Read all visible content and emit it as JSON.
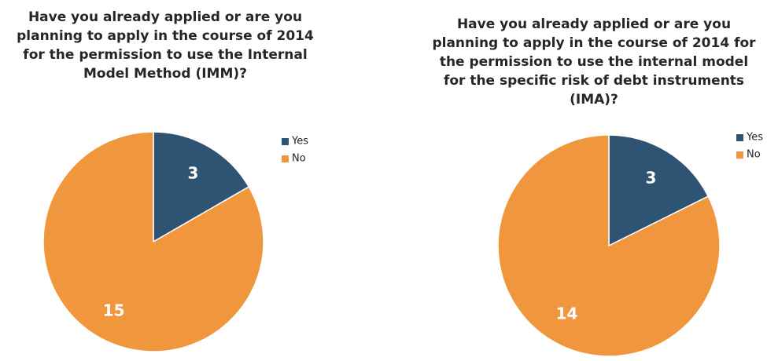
{
  "chart_data": [
    {
      "type": "pie",
      "title": "Have you already applied or are you\nplanning to apply in the course of 2014\nfor the permission to use the Internal\nModel Method (IMM)?",
      "categories": [
        "Yes",
        "No"
      ],
      "values": [
        3,
        15
      ],
      "colors": [
        "#2e5373",
        "#f0963c"
      ],
      "legend": "right",
      "data_labels": true
    },
    {
      "type": "pie",
      "title": "Have you already applied or are you\nplanning to apply in the course of 2014 for\nthe permission to use the internal model\nfor the specific risk of debt instruments\n(IMA)?",
      "categories": [
        "Yes",
        "No"
      ],
      "values": [
        3,
        14
      ],
      "colors": [
        "#2e5373",
        "#f0963c"
      ],
      "legend": "right",
      "data_labels": true
    }
  ]
}
